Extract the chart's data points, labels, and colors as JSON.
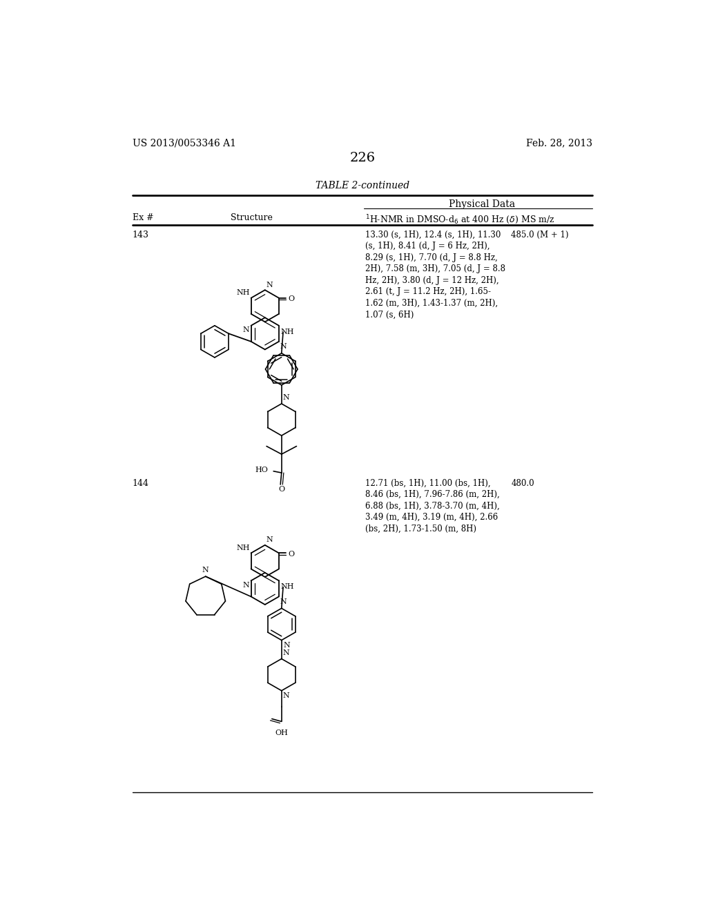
{
  "background_color": "#ffffff",
  "header_left": "US 2013/0053346 A1",
  "header_right": "Feb. 28, 2013",
  "page_number": "226",
  "table_title": "TABLE 2-continued",
  "col1_header": "Ex #",
  "col2_header": "Structure",
  "col3_header": "Physical Data",
  "row1_ex": "143",
  "row1_nmr_col1": "13.30 (s, 1H), 12.4 (s, 1H), 11.30\n(s, 1H), 8.41 (d, J = 6 Hz, 2H),\n8.29 (s, 1H), 7.70 (d, J = 8.8 Hz,\n2H), 7.58 (m, 3H), 7.05 (d, J = 8.8\nHz, 2H), 3.80 (d, J = 12 Hz, 2H),\n2.61 (t, J = 11.2 Hz, 2H), 1.65-\n1.62 (m, 3H), 1.43-1.37 (m, 2H),\n1.07 (s, 6H)",
  "row1_ms": "485.0 (M + 1)",
  "row2_ex": "144",
  "row2_nmr_col1": "12.71 (bs, 1H), 11.00 (bs, 1H),\n8.46 (bs, 1H), 7.96-7.86 (m, 2H),\n6.88 (bs, 1H), 3.78-3.70 (m, 4H),\n3.49 (m, 4H), 3.19 (m, 4H), 2.66\n(bs, 2H), 1.73-1.50 (m, 8H)",
  "row2_ms": "480.0",
  "font_size_header": 10,
  "font_size_body": 9,
  "font_size_page_num": 14,
  "font_size_struct": 7
}
